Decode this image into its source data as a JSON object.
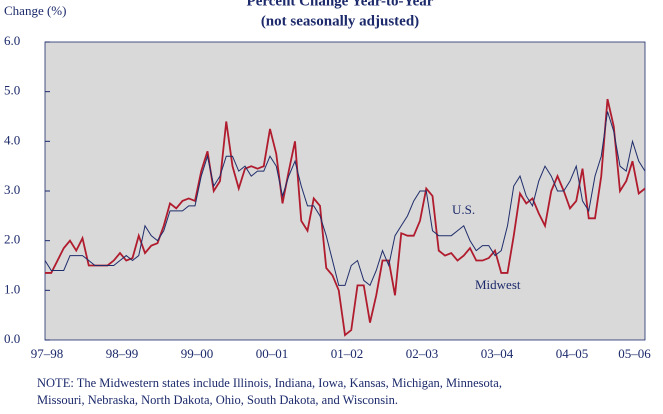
{
  "chart_data": {
    "type": "line",
    "title": [
      "Percent Change Year-to-Year",
      "(not seasonally adjusted)"
    ],
    "y_label": "Change (%)",
    "categories": [
      "97–98",
      null,
      null,
      null,
      null,
      null,
      null,
      null,
      null,
      null,
      null,
      null,
      "98–99",
      null,
      null,
      null,
      null,
      null,
      null,
      null,
      null,
      null,
      null,
      null,
      "99–00",
      null,
      null,
      null,
      null,
      null,
      null,
      null,
      null,
      null,
      null,
      null,
      "00–01",
      null,
      null,
      null,
      null,
      null,
      null,
      null,
      null,
      null,
      null,
      null,
      "01–02",
      null,
      null,
      null,
      null,
      null,
      null,
      null,
      null,
      null,
      null,
      null,
      "02–03",
      null,
      null,
      null,
      null,
      null,
      null,
      null,
      null,
      null,
      null,
      null,
      "03–04",
      null,
      null,
      null,
      null,
      null,
      null,
      null,
      null,
      null,
      null,
      null,
      "04–05",
      null,
      null,
      null,
      null,
      null,
      null,
      null,
      null,
      null,
      "05–06",
      null,
      null
    ],
    "series": [
      {
        "name": "U.S.",
        "color": "#1f2d6b",
        "values": [
          1.6,
          1.4,
          1.4,
          1.4,
          1.7,
          1.7,
          1.7,
          1.6,
          1.5,
          1.5,
          1.5,
          1.5,
          1.6,
          1.7,
          1.6,
          1.7,
          2.3,
          2.1,
          2.0,
          2.2,
          2.6,
          2.6,
          2.6,
          2.7,
          2.7,
          3.3,
          3.7,
          3.1,
          3.3,
          3.7,
          3.7,
          3.4,
          3.5,
          3.3,
          3.4,
          3.4,
          3.7,
          3.5,
          2.9,
          3.3,
          3.6,
          3.1,
          2.7,
          2.7,
          2.5,
          2.1,
          1.6,
          1.1,
          1.1,
          1.5,
          1.6,
          1.2,
          1.1,
          1.4,
          1.8,
          1.5,
          2.1,
          2.3,
          2.5,
          2.8,
          3.0,
          3.0,
          2.2,
          2.1,
          2.1,
          2.1,
          2.2,
          2.3,
          2.0,
          1.8,
          1.9,
          1.9,
          1.7,
          1.8,
          2.3,
          3.1,
          3.3,
          2.9,
          2.7,
          3.2,
          3.5,
          3.3,
          3.0,
          3.0,
          3.2,
          3.5,
          2.8,
          2.6,
          3.3,
          3.7,
          4.6,
          4.2,
          3.5,
          3.4,
          4.0,
          3.6,
          3.4
        ]
      },
      {
        "name": "Midwest",
        "color": "#b01c2e",
        "values": [
          1.35,
          1.35,
          1.6,
          1.85,
          2.0,
          1.8,
          2.05,
          1.5,
          1.5,
          1.5,
          1.5,
          1.6,
          1.75,
          1.6,
          1.65,
          2.1,
          1.75,
          1.9,
          1.95,
          2.3,
          2.75,
          2.65,
          2.8,
          2.85,
          2.8,
          3.4,
          3.8,
          3.0,
          3.2,
          4.4,
          3.5,
          3.05,
          3.45,
          3.5,
          3.45,
          3.5,
          4.25,
          3.75,
          2.75,
          3.4,
          4.0,
          2.4,
          2.2,
          2.85,
          2.7,
          1.45,
          1.3,
          1.0,
          0.1,
          0.2,
          1.1,
          1.1,
          0.35,
          0.9,
          1.6,
          1.6,
          0.9,
          2.15,
          2.1,
          2.1,
          2.4,
          3.05,
          2.9,
          1.8,
          1.7,
          1.75,
          1.6,
          1.7,
          1.85,
          1.6,
          1.6,
          1.65,
          1.8,
          1.35,
          1.35,
          2.1,
          2.95,
          2.75,
          2.85,
          2.55,
          2.3,
          3.0,
          3.3,
          3.0,
          2.65,
          2.8,
          3.45,
          2.45,
          2.45,
          3.3,
          4.85,
          4.3,
          3.0,
          3.2,
          3.6,
          2.95,
          3.05
        ]
      }
    ],
    "ylim": [
      0,
      6
    ],
    "yticks": [
      {
        "value": 0,
        "label": "0.0"
      },
      {
        "value": 1,
        "label": "1.0"
      },
      {
        "value": 2,
        "label": "2.0"
      },
      {
        "value": 3,
        "label": "3.0"
      },
      {
        "value": 4,
        "label": "4.0"
      },
      {
        "value": 5,
        "label": "5.0"
      },
      {
        "value": 6,
        "label": "6.0"
      }
    ],
    "background": "#d9d9d9",
    "note": [
      "NOTE:  The Midwestern states include Illinois, Indiana, Iowa, Kansas, Michigan, Minnesota,",
      "Missouri, Nebraska, North Dakota, Ohio, South Dakota, and Wisconsin."
    ]
  }
}
